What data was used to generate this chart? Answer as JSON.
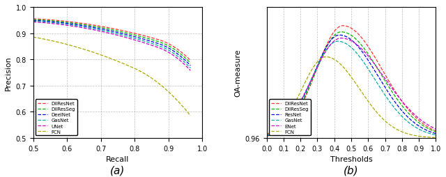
{
  "left_xlabel": "Recall",
  "left_ylabel": "Precision",
  "left_xlim": [
    0.5,
    1.0
  ],
  "left_ylim": [
    0.5,
    1.0
  ],
  "right_xlabel": "Thresholds",
  "right_ylabel": "OA-measure",
  "right_xlim": [
    0.0,
    1.0
  ],
  "right_ylim": [
    0.96,
    1.002
  ],
  "legend_labels_left": [
    "DilResNet",
    "DilResSeg",
    "DeelNet",
    "GasNet",
    "UNet",
    "FCN"
  ],
  "legend_labels_right": [
    "DilResNet",
    "DilResSeg",
    "ResNet",
    "GasNet",
    "ENet",
    "FCN"
  ],
  "colors": [
    "#ff3333",
    "#00bb00",
    "#0000ee",
    "#00aaaa",
    "#cc00cc",
    "#aaaa00"
  ],
  "label_a": "(a)",
  "label_b": "(b)"
}
